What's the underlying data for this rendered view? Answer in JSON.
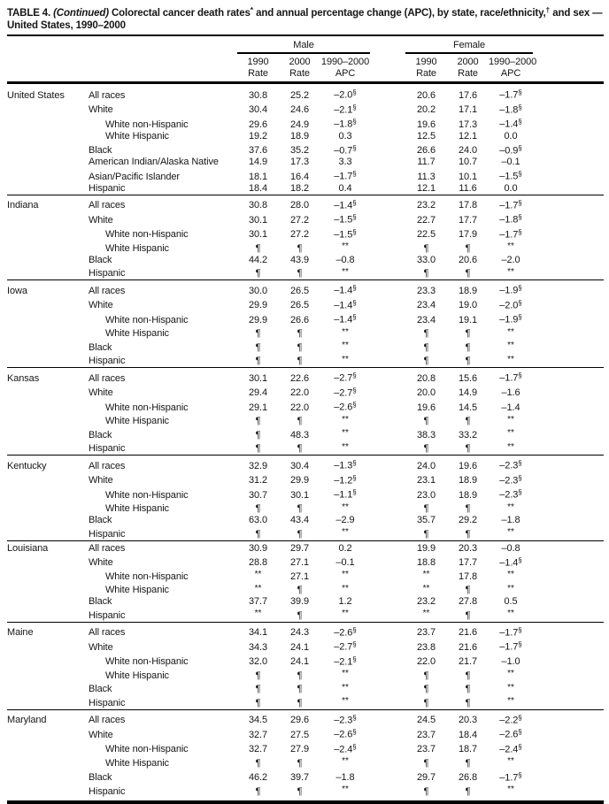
{
  "title": {
    "label": "TABLE 4. ",
    "continued": "(Continued)",
    "part1": " Colorectal cancer death rates",
    "sup1": "*",
    "part2": " and annual percentage change (APC), by state, race/ethnicity,",
    "sup2": "†",
    "part3": " and sex —",
    "line2": "United States, 1990–2000"
  },
  "table": {
    "header": {
      "groups": [
        {
          "label": "Male"
        },
        {
          "label": "Female"
        }
      ],
      "subcols": [
        {
          "line1": "1990",
          "line2": "Rate"
        },
        {
          "line1": "2000",
          "line2": "Rate"
        },
        {
          "line1": "1990–2000",
          "line2": "APC"
        }
      ]
    },
    "cell_names": [
      "male-1990-rate-cell",
      "male-2000-rate-cell",
      "male-apc-cell",
      "female-1990-rate-cell",
      "female-2000-rate-cell",
      "female-apc-cell"
    ],
    "sections": [
      {
        "state": "United States",
        "rows": [
          {
            "race": "All races",
            "indent": false,
            "cells": [
              "30.8",
              "25.2",
              "–2.0§",
              "20.6",
              "17.6",
              "–1.7§"
            ]
          },
          {
            "race": "White",
            "indent": false,
            "cells": [
              "30.4",
              "24.6",
              "–2.1§",
              "20.2",
              "17.1",
              "–1.8§"
            ]
          },
          {
            "race": "White non-Hispanic",
            "indent": true,
            "cells": [
              "29.6",
              "24.9",
              "–1.8§",
              "19.6",
              "17.3",
              "–1.4§"
            ]
          },
          {
            "race": "White Hispanic",
            "indent": true,
            "cells": [
              "19.2",
              "18.9",
              "0.3",
              "12.5",
              "12.1",
              "0.0"
            ]
          },
          {
            "race": "Black",
            "indent": false,
            "cells": [
              "37.6",
              "35.2",
              "–0.7§",
              "26.6",
              "24.0",
              "–0.9§"
            ]
          },
          {
            "race": "American Indian/Alaska Native",
            "indent": false,
            "cells": [
              "14.9",
              "17.3",
              "3.3",
              "11.7",
              "10.7",
              "–0.1"
            ]
          },
          {
            "race": "Asian/Pacific Islander",
            "indent": false,
            "cells": [
              "18.1",
              "16.4",
              "–1.7§",
              "11.3",
              "10.1",
              "–1.5§"
            ]
          },
          {
            "race": "Hispanic",
            "indent": false,
            "cells": [
              "18.4",
              "18.2",
              "0.4",
              "12.1",
              "11.6",
              "0.0"
            ]
          }
        ]
      },
      {
        "state": "Indiana",
        "rows": [
          {
            "race": "All races",
            "indent": false,
            "cells": [
              "30.8",
              "28.0",
              "–1.4§",
              "23.2",
              "17.8",
              "–1.7§"
            ]
          },
          {
            "race": "White",
            "indent": false,
            "cells": [
              "30.1",
              "27.2",
              "–1.5§",
              "22.7",
              "17.7",
              "–1.8§"
            ]
          },
          {
            "race": "White non-Hispanic",
            "indent": true,
            "cells": [
              "30.1",
              "27.2",
              "–1.5§",
              "22.5",
              "17.9",
              "–1.7§"
            ]
          },
          {
            "race": "White Hispanic",
            "indent": true,
            "cells": [
              "¶",
              "¶",
              "**",
              "¶",
              "¶",
              "**"
            ]
          },
          {
            "race": "Black",
            "indent": false,
            "cells": [
              "44.2",
              "43.9",
              "–0.8",
              "33.0",
              "20.6",
              "–2.0"
            ]
          },
          {
            "race": "Hispanic",
            "indent": false,
            "cells": [
              "¶",
              "¶",
              "**",
              "¶",
              "¶",
              "**"
            ]
          }
        ]
      },
      {
        "state": "Iowa",
        "rows": [
          {
            "race": "All races",
            "indent": false,
            "cells": [
              "30.0",
              "26.5",
              "–1.4§",
              "23.3",
              "18.9",
              "–1.9§"
            ]
          },
          {
            "race": "White",
            "indent": false,
            "cells": [
              "29.9",
              "26.5",
              "–1.4§",
              "23.4",
              "19.0",
              "–2.0§"
            ]
          },
          {
            "race": "White non-Hispanic",
            "indent": true,
            "cells": [
              "29.9",
              "26.6",
              "–1.4§",
              "23.4",
              "19.1",
              "–1.9§"
            ]
          },
          {
            "race": "White Hispanic",
            "indent": true,
            "cells": [
              "¶",
              "¶",
              "**",
              "¶",
              "¶",
              "**"
            ]
          },
          {
            "race": "Black",
            "indent": false,
            "cells": [
              "¶",
              "¶",
              "**",
              "¶",
              "¶",
              "**"
            ]
          },
          {
            "race": "Hispanic",
            "indent": false,
            "cells": [
              "¶",
              "¶",
              "**",
              "¶",
              "¶",
              "**"
            ]
          }
        ]
      },
      {
        "state": "Kansas",
        "rows": [
          {
            "race": "All races",
            "indent": false,
            "cells": [
              "30.1",
              "22.6",
              "–2.7§",
              "20.8",
              "15.6",
              "–1.7§"
            ]
          },
          {
            "race": "White",
            "indent": false,
            "cells": [
              "29.4",
              "22.0",
              "–2.7§",
              "20.0",
              "14.9",
              "–1.6"
            ]
          },
          {
            "race": "White non-Hispanic",
            "indent": true,
            "cells": [
              "29.1",
              "22.0",
              "–2.6§",
              "19.6",
              "14.5",
              "–1.4"
            ]
          },
          {
            "race": "White Hispanic",
            "indent": true,
            "cells": [
              "¶",
              "¶",
              "**",
              "¶",
              "¶",
              "**"
            ]
          },
          {
            "race": "Black",
            "indent": false,
            "cells": [
              "¶",
              "48.3",
              "**",
              "38.3",
              "33.2",
              "**"
            ]
          },
          {
            "race": "Hispanic",
            "indent": false,
            "cells": [
              "¶",
              "¶",
              "**",
              "¶",
              "¶",
              "**"
            ]
          }
        ]
      },
      {
        "state": "Kentucky",
        "rows": [
          {
            "race": "All races",
            "indent": false,
            "cells": [
              "32.9",
              "30.4",
              "–1.3§",
              "24.0",
              "19.6",
              "–2.3§"
            ]
          },
          {
            "race": "White",
            "indent": false,
            "cells": [
              "31.2",
              "29.9",
              "–1.2§",
              "23.1",
              "18.9",
              "–2.3§"
            ]
          },
          {
            "race": "White non-Hispanic",
            "indent": true,
            "cells": [
              "30.7",
              "30.1",
              "–1.1§",
              "23.0",
              "18.9",
              "–2.3§"
            ]
          },
          {
            "race": "White Hispanic",
            "indent": true,
            "cells": [
              "¶",
              "¶",
              "**",
              "¶",
              "¶",
              "**"
            ]
          },
          {
            "race": "Black",
            "indent": false,
            "cells": [
              "63.0",
              "43.4",
              "–2.9",
              "35.7",
              "29.2",
              "–1.8"
            ]
          },
          {
            "race": "Hispanic",
            "indent": false,
            "cells": [
              "¶",
              "¶",
              "**",
              "¶",
              "¶",
              "**"
            ]
          }
        ]
      },
      {
        "state": "Louisiana",
        "rows": [
          {
            "race": "All races",
            "indent": false,
            "cells": [
              "30.9",
              "29.7",
              "0.2",
              "19.9",
              "20.3",
              "–0.8"
            ]
          },
          {
            "race": "White",
            "indent": false,
            "cells": [
              "28.8",
              "27.1",
              "–0.1",
              "18.8",
              "17.7",
              "–1.4§"
            ]
          },
          {
            "race": "White non-Hispanic",
            "indent": true,
            "cells": [
              "**",
              "27.1",
              "**",
              "**",
              "17.8",
              "**"
            ]
          },
          {
            "race": "White Hispanic",
            "indent": true,
            "cells": [
              "**",
              "¶",
              "**",
              "**",
              "¶",
              "**"
            ]
          },
          {
            "race": "Black",
            "indent": false,
            "cells": [
              "37.7",
              "39.9",
              "1.2",
              "23.2",
              "27.8",
              "0.5"
            ]
          },
          {
            "race": "Hispanic",
            "indent": false,
            "cells": [
              "**",
              "¶",
              "**",
              "**",
              "¶",
              "**"
            ]
          }
        ]
      },
      {
        "state": "Maine",
        "rows": [
          {
            "race": "All races",
            "indent": false,
            "cells": [
              "34.1",
              "24.3",
              "–2.6§",
              "23.7",
              "21.6",
              "–1.7§"
            ]
          },
          {
            "race": "White",
            "indent": false,
            "cells": [
              "34.3",
              "24.1",
              "–2.7§",
              "23.8",
              "21.6",
              "–1.7§"
            ]
          },
          {
            "race": "White non-Hispanic",
            "indent": true,
            "cells": [
              "32.0",
              "24.1",
              "–2.1§",
              "22.0",
              "21.7",
              "–1.0"
            ]
          },
          {
            "race": "White Hispanic",
            "indent": true,
            "cells": [
              "¶",
              "¶",
              "**",
              "¶",
              "¶",
              "**"
            ]
          },
          {
            "race": "Black",
            "indent": false,
            "cells": [
              "¶",
              "¶",
              "**",
              "¶",
              "¶",
              "**"
            ]
          },
          {
            "race": "Hispanic",
            "indent": false,
            "cells": [
              "¶",
              "¶",
              "**",
              "¶",
              "¶",
              "**"
            ]
          }
        ]
      },
      {
        "state": "Maryland",
        "rows": [
          {
            "race": "All races",
            "indent": false,
            "cells": [
              "34.5",
              "29.6",
              "–2.3§",
              "24.5",
              "20.3",
              "–2.2§"
            ]
          },
          {
            "race": "White",
            "indent": false,
            "cells": [
              "32.7",
              "27.5",
              "–2.6§",
              "23.7",
              "18.4",
              "–2.6§"
            ]
          },
          {
            "race": "White non-Hispanic",
            "indent": true,
            "cells": [
              "32.7",
              "27.9",
              "–2.4§",
              "23.7",
              "18.7",
              "–2.4§"
            ]
          },
          {
            "race": "White Hispanic",
            "indent": true,
            "cells": [
              "¶",
              "¶",
              "**",
              "¶",
              "¶",
              "**"
            ]
          },
          {
            "race": "Black",
            "indent": false,
            "cells": [
              "46.2",
              "39.7",
              "–1.8",
              "29.7",
              "26.8",
              "–1.7§"
            ]
          },
          {
            "race": "Hispanic",
            "indent": false,
            "cells": [
              "¶",
              "¶",
              "**",
              "¶",
              "¶",
              "**"
            ]
          }
        ]
      }
    ]
  }
}
